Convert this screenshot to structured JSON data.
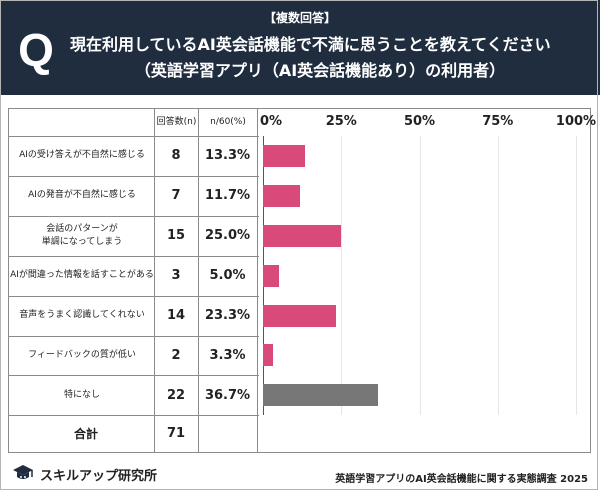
{
  "header": {
    "tag": "【複数回答】",
    "q_mark": "Q",
    "title": "現在利用しているAI英会話機能で不満に思うことを教えてください",
    "subtitle": "（英語学習アプリ（AI英会話機能あり）の利用者）"
  },
  "table": {
    "col_n_header": "回答数(n)",
    "col_pct_header": "n/60(%)",
    "total_label": "合計",
    "total_n": "71"
  },
  "chart_data": {
    "type": "bar",
    "orientation": "horizontal",
    "categories": [
      "AIの受け答えが不自然に感じる",
      "AIの発音が不自然に感じる",
      "会話のパターンが\n単調になってしまう",
      "AIが間違った情報を話すことがある",
      "音声をうまく認識してくれない",
      "フィードバックの質が低い",
      "特になし"
    ],
    "counts": [
      "8",
      "7",
      "15",
      "3",
      "14",
      "2",
      "22"
    ],
    "percent_labels": [
      "13.3%",
      "11.7%",
      "25.0%",
      "5.0%",
      "23.3%",
      "3.3%",
      "36.7%"
    ],
    "values": [
      13.3,
      11.7,
      25.0,
      5.0,
      23.3,
      3.3,
      36.7
    ],
    "xlim": [
      0,
      100
    ],
    "ticks": [
      "0%",
      "25%",
      "50%",
      "75%",
      "100%"
    ],
    "tick_values": [
      0,
      25,
      50,
      75,
      100
    ],
    "bar_colors": [
      "#d94a7a",
      "#d94a7a",
      "#d94a7a",
      "#d94a7a",
      "#d94a7a",
      "#d94a7a",
      "#777777"
    ]
  },
  "footer": {
    "brand": "スキルアップ研究所",
    "source": "英語学習アプリのAI英会話機能に関する実態調査 2025"
  }
}
